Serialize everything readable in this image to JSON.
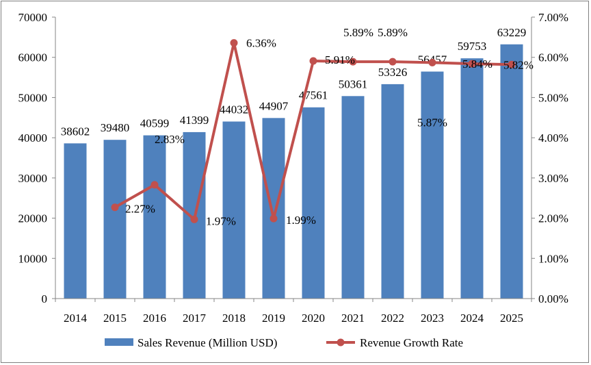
{
  "chart_data": {
    "type": "bar",
    "categories": [
      "2014",
      "2015",
      "2016",
      "2017",
      "2018",
      "2019",
      "2020",
      "2021",
      "2022",
      "2023",
      "2024",
      "2025"
    ],
    "series": [
      {
        "name": "Sales Revenue (Million USD)",
        "type": "bar",
        "axis": "left",
        "color": "#4f81bd",
        "values": [
          38602,
          39480,
          40599,
          41399,
          44032,
          44907,
          47561,
          50361,
          53326,
          56457,
          59753,
          63229
        ],
        "labels": [
          "38602",
          "39480",
          "40599",
          "41399",
          "44032",
          "44907",
          "47561",
          "50361",
          "53326",
          "56457",
          "59753",
          "63229"
        ]
      },
      {
        "name": "Revenue Growth Rate",
        "type": "line",
        "axis": "right",
        "color": "#c0504d",
        "values": [
          null,
          2.27,
          2.83,
          1.97,
          6.36,
          1.99,
          5.91,
          5.89,
          5.89,
          5.87,
          5.84,
          5.82
        ],
        "labels": [
          "",
          "2.27%",
          "2.83%",
          "1.97%",
          "6.36%",
          "1.99%",
          "5.91%",
          "5.89%",
          "5.89%",
          "5.87%",
          "5.84%",
          "5.82%"
        ]
      }
    ],
    "y_left": {
      "ylim": [
        0,
        70000
      ],
      "ticks": [
        "0",
        "10000",
        "20000",
        "30000",
        "40000",
        "50000",
        "60000",
        "70000"
      ]
    },
    "y_right": {
      "ylim": [
        0,
        7
      ],
      "ticks": [
        "0.00%",
        "1.00%",
        "2.00%",
        "3.00%",
        "4.00%",
        "5.00%",
        "6.00%",
        "7.00%"
      ]
    },
    "grid": false,
    "legend_position": "bottom"
  }
}
